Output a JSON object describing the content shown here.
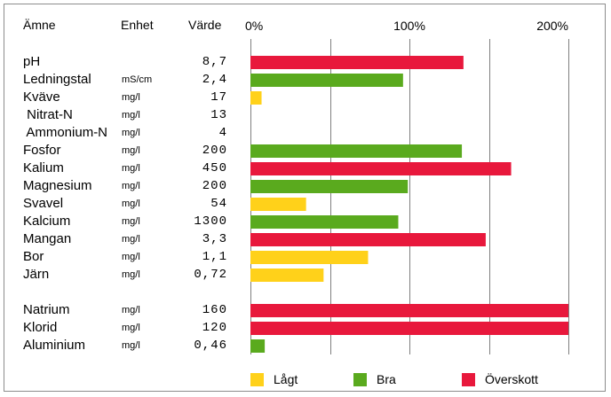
{
  "headers": {
    "amne": "Ämne",
    "enhet": "Enhet",
    "varde": "Värde"
  },
  "chart_data": {
    "type": "bar",
    "orientation": "horizontal",
    "xlim": [
      0,
      200
    ],
    "x_ticks": [
      {
        "value": 0,
        "label": "0%"
      },
      {
        "value": 100,
        "label": "100%"
      },
      {
        "value": 200,
        "label": "200%"
      }
    ],
    "gridlines": [
      0,
      50,
      100,
      150,
      200
    ],
    "status_colors": {
      "lagt": "#ffd11a",
      "bra": "#5aaa1e",
      "overskott": "#e8183c"
    },
    "rows": [
      {
        "name": "pH",
        "unit": "",
        "value": "8,7",
        "pct": 134,
        "status": "overskott"
      },
      {
        "name": "Ledningstal",
        "unit": "mS/cm",
        "value": "2,4",
        "pct": 96,
        "status": "bra"
      },
      {
        "name": "Kväve",
        "unit": "mg/l",
        "value": "17",
        "pct": 7,
        "status": "lagt"
      },
      {
        "name": " Nitrat-N",
        "unit": "mg/l",
        "value": "13",
        "pct": null,
        "status": null
      },
      {
        "name": " Ammonium-N",
        "unit": "mg/l",
        "value": "4",
        "pct": null,
        "status": null
      },
      {
        "name": "Fosfor",
        "unit": "mg/l",
        "value": "200",
        "pct": 133,
        "status": "bra"
      },
      {
        "name": "Kalium",
        "unit": "mg/l",
        "value": "450",
        "pct": 164,
        "status": "overskott"
      },
      {
        "name": "Magnesium",
        "unit": "mg/l",
        "value": "200",
        "pct": 99,
        "status": "bra"
      },
      {
        "name": "Svavel",
        "unit": "mg/l",
        "value": "54",
        "pct": 35,
        "status": "lagt"
      },
      {
        "name": "Kalcium",
        "unit": "mg/l",
        "value": "1300",
        "pct": 93,
        "status": "bra"
      },
      {
        "name": "Mangan",
        "unit": "mg/l",
        "value": "3,3",
        "pct": 148,
        "status": "overskott"
      },
      {
        "name": "Bor",
        "unit": "mg/l",
        "value": "1,1",
        "pct": 74,
        "status": "lagt"
      },
      {
        "name": "Järn",
        "unit": "mg/l",
        "value": "0,72",
        "pct": 46,
        "status": "lagt"
      },
      {
        "name": "Natrium",
        "unit": "mg/l",
        "value": "160",
        "pct": 200,
        "status": "overskott"
      },
      {
        "name": "Klorid",
        "unit": "mg/l",
        "value": "120",
        "pct": 200,
        "status": "overskott"
      },
      {
        "name": "Aluminium",
        "unit": "mg/l",
        "value": "0,46",
        "pct": 9,
        "status": "bra"
      }
    ],
    "legend": [
      {
        "label": "Lågt",
        "status": "lagt"
      },
      {
        "label": "Bra",
        "status": "bra"
      },
      {
        "label": "Överskott",
        "status": "overskott"
      }
    ],
    "legend_position": "bottom"
  }
}
